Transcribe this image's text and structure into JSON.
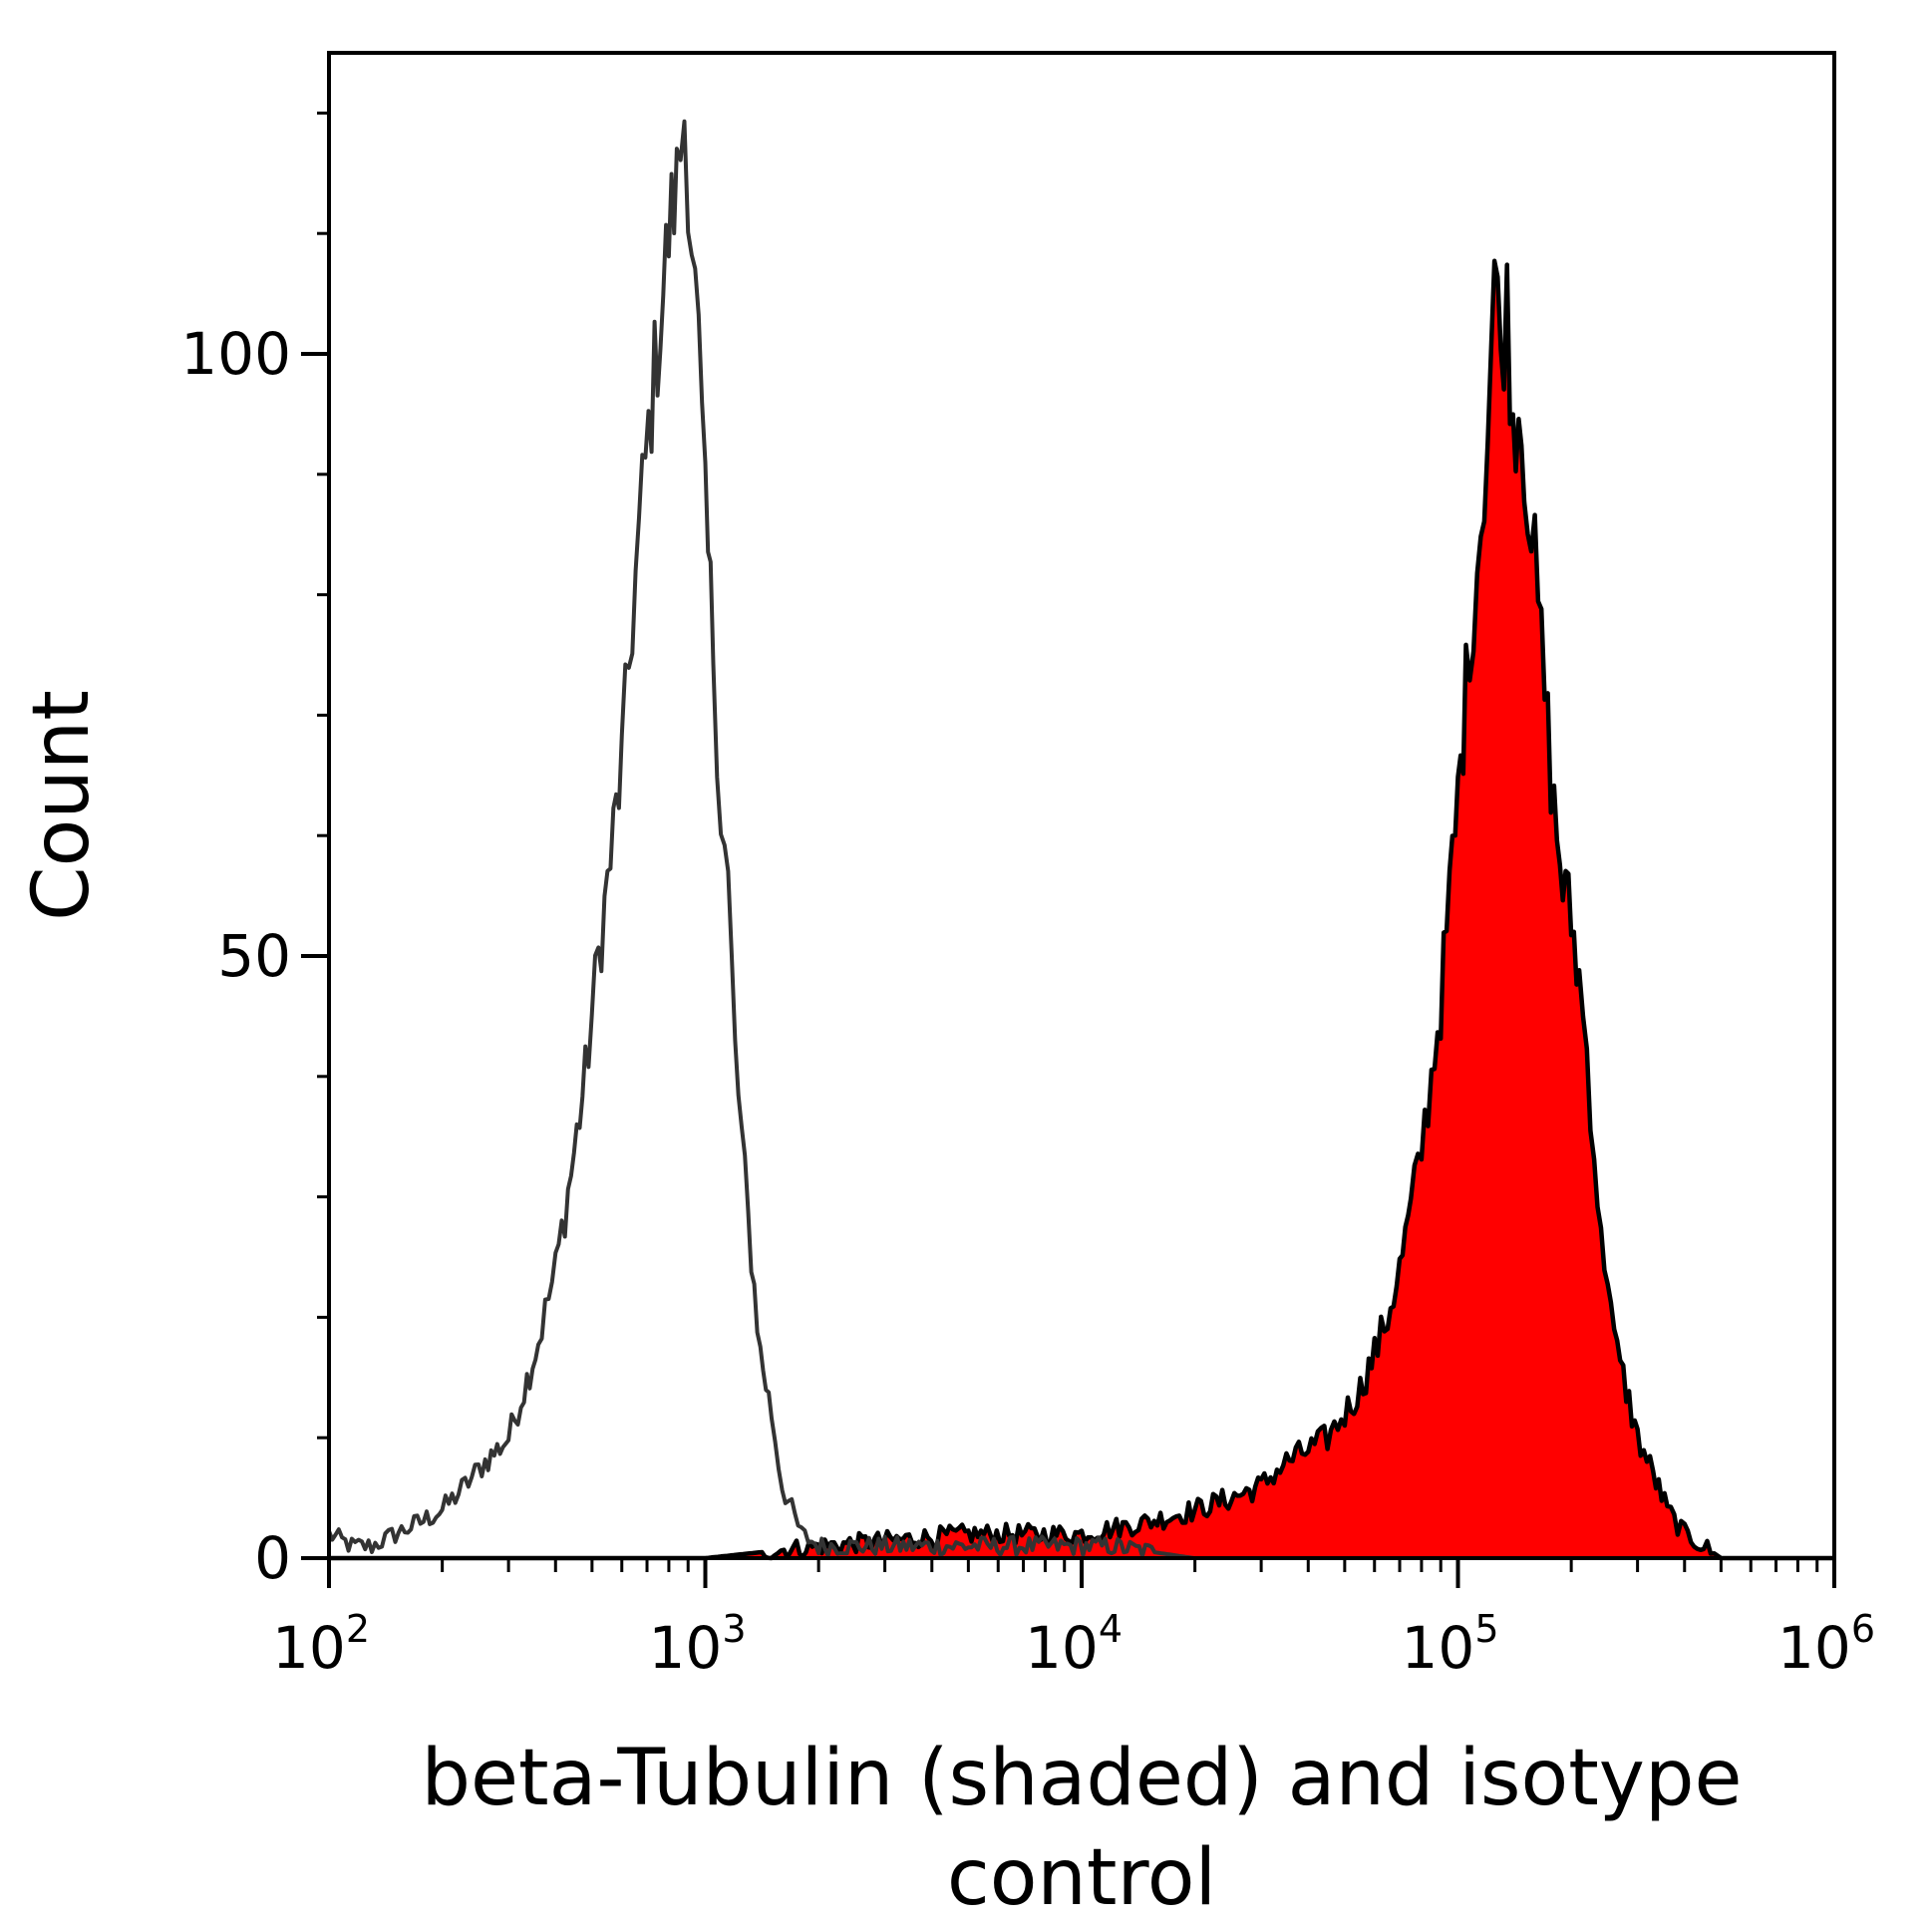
{
  "chart_data": {
    "type": "area",
    "xscale": "log",
    "xlim": [
      100,
      1000000
    ],
    "ylim": [
      0,
      125
    ],
    "grid": false,
    "legend": "none",
    "ylabel": "Count",
    "xlabel_lines": [
      "beta-Tubulin (shaded) and isotype",
      "control"
    ],
    "y_major_ticks": [
      0,
      50,
      100
    ],
    "y_minor_step": 10,
    "x_major_ticks": [
      {
        "value": 100,
        "base": "10",
        "exp": "2"
      },
      {
        "value": 1000,
        "base": "10",
        "exp": "3"
      },
      {
        "value": 10000,
        "base": "10",
        "exp": "4"
      },
      {
        "value": 100000,
        "base": "10",
        "exp": "5"
      },
      {
        "value": 1000000,
        "base": "10",
        "exp": "6"
      }
    ],
    "series": [
      {
        "key": "isotype",
        "style": "outline",
        "color": "#333333",
        "x": [
          100,
          115,
          130,
          150,
          175,
          200,
          230,
          260,
          280,
          300,
          330,
          360,
          400,
          440,
          480,
          520,
          560,
          600,
          640,
          680,
          720,
          760,
          800,
          840,
          880,
          920,
          960,
          1000,
          1050,
          1100,
          1150,
          1200,
          1300,
          1400,
          1500,
          1600,
          1800,
          2000,
          3000,
          5000,
          8000,
          12000,
          20000,
          40000,
          100000,
          300000,
          1000000
        ],
        "y": [
          2,
          1,
          1,
          2,
          3,
          4,
          6,
          8,
          9,
          10,
          14,
          18,
          24,
          32,
          40,
          50,
          58,
          66,
          78,
          88,
          96,
          103,
          110,
          114,
          120,
          110,
          100,
          86,
          76,
          62,
          56,
          42,
          28,
          17,
          12,
          6,
          2,
          1,
          1,
          1,
          1,
          1,
          0,
          0,
          0,
          0,
          0
        ]
      },
      {
        "key": "beta-tubulin",
        "style": "filled",
        "color": "#ff0000",
        "x": [
          100,
          300,
          1000,
          2000,
          5000,
          10000,
          15000,
          20000,
          25000,
          30000,
          35000,
          40000,
          45000,
          50000,
          55000,
          60000,
          65000,
          70000,
          75000,
          80000,
          85000,
          90000,
          95000,
          100000,
          105000,
          110000,
          115000,
          120000,
          125000,
          130000,
          135000,
          140000,
          145000,
          150000,
          160000,
          170000,
          180000,
          190000,
          200000,
          210000,
          220000,
          230000,
          240000,
          250000,
          260000,
          280000,
          300000,
          330000,
          360000,
          400000,
          450000,
          500000,
          1000000
        ],
        "y": [
          0,
          0,
          0,
          1,
          2,
          2,
          3,
          4,
          5,
          6,
          8,
          9,
          10,
          12,
          14,
          17,
          20,
          24,
          29,
          34,
          40,
          46,
          55,
          63,
          72,
          80,
          86,
          94,
          107,
          100,
          104,
          94,
          96,
          92,
          82,
          72,
          62,
          56,
          53,
          48,
          42,
          34,
          26,
          24,
          18,
          14,
          10,
          7,
          4,
          2,
          1,
          0,
          0
        ]
      }
    ]
  }
}
